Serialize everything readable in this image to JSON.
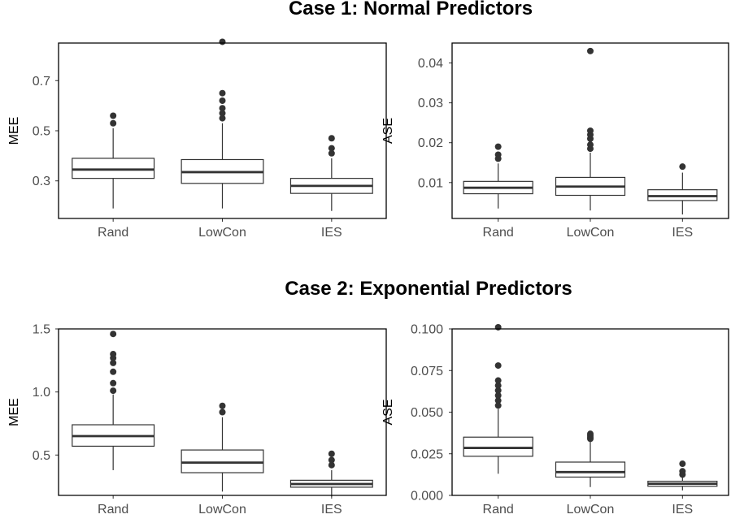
{
  "figure": {
    "case_titles": [
      "Case 1: Normal Predictors",
      "Case 2: Exponential Predictors"
    ]
  },
  "chart_data": [
    {
      "type": "boxplot",
      "panel": "case1-mee",
      "title": "",
      "xlabel": "",
      "ylabel": "MEE",
      "categories": [
        "Rand",
        "LowCon",
        "IES"
      ],
      "ylim": [
        0.15,
        0.85
      ],
      "yticks": [
        0.3,
        0.5,
        0.7
      ],
      "ytick_labels": [
        "0.3",
        "0.5",
        "0.7"
      ],
      "boxes": [
        {
          "category": "Rand",
          "whisker_low": 0.19,
          "q1": 0.31,
          "median": 0.345,
          "q3": 0.39,
          "whisker_high": 0.51,
          "outliers": [
            0.53,
            0.56
          ]
        },
        {
          "category": "LowCon",
          "whisker_low": 0.19,
          "q1": 0.29,
          "median": 0.335,
          "q3": 0.385,
          "whisker_high": 0.53,
          "outliers": [
            0.55,
            0.57,
            0.59,
            0.62,
            0.65,
            0.855
          ]
        },
        {
          "category": "IES",
          "whisker_low": 0.18,
          "q1": 0.25,
          "median": 0.28,
          "q3": 0.31,
          "whisker_high": 0.39,
          "outliers": [
            0.41,
            0.43,
            0.47
          ]
        }
      ]
    },
    {
      "type": "boxplot",
      "panel": "case1-ase",
      "title": "",
      "xlabel": "",
      "ylabel": "ASE",
      "categories": [
        "Rand",
        "LowCon",
        "IES"
      ],
      "ylim": [
        0.001,
        0.045
      ],
      "yticks": [
        0.01,
        0.02,
        0.03,
        0.04
      ],
      "ytick_labels": [
        "0.01",
        "0.02",
        "0.03",
        "0.04"
      ],
      "boxes": [
        {
          "category": "Rand",
          "whisker_low": 0.0035,
          "q1": 0.0072,
          "median": 0.0087,
          "q3": 0.0103,
          "whisker_high": 0.0148,
          "outliers": [
            0.016,
            0.017,
            0.019
          ]
        },
        {
          "category": "LowCon",
          "whisker_low": 0.003,
          "q1": 0.0068,
          "median": 0.009,
          "q3": 0.0113,
          "whisker_high": 0.0175,
          "outliers": [
            0.0185,
            0.0195,
            0.021,
            0.022,
            0.023,
            0.043
          ]
        },
        {
          "category": "IES",
          "whisker_low": 0.002,
          "q1": 0.0055,
          "median": 0.0066,
          "q3": 0.0082,
          "whisker_high": 0.0125,
          "outliers": [
            0.014
          ]
        }
      ]
    },
    {
      "type": "boxplot",
      "panel": "case2-mee",
      "title": "",
      "xlabel": "",
      "ylabel": "MEE",
      "categories": [
        "Rand",
        "LowCon",
        "IES"
      ],
      "ylim": [
        0.18,
        1.5
      ],
      "yticks": [
        0.5,
        1.0,
        1.5
      ],
      "ytick_labels": [
        "0.5",
        "1.0",
        "1.5"
      ],
      "boxes": [
        {
          "category": "Rand",
          "whisker_low": 0.38,
          "q1": 0.57,
          "median": 0.65,
          "q3": 0.74,
          "whisker_high": 0.98,
          "outliers": [
            1.01,
            1.07,
            1.16,
            1.23,
            1.27,
            1.3,
            1.46
          ]
        },
        {
          "category": "LowCon",
          "whisker_low": 0.21,
          "q1": 0.36,
          "median": 0.44,
          "q3": 0.54,
          "whisker_high": 0.8,
          "outliers": [
            0.84,
            0.89
          ]
        },
        {
          "category": "IES",
          "whisker_low": 0.17,
          "q1": 0.245,
          "median": 0.27,
          "q3": 0.3,
          "whisker_high": 0.38,
          "outliers": [
            0.42,
            0.46,
            0.51
          ]
        }
      ]
    },
    {
      "type": "boxplot",
      "panel": "case2-ase",
      "title": "",
      "xlabel": "",
      "ylabel": "ASE",
      "categories": [
        "Rand",
        "LowCon",
        "IES"
      ],
      "ylim": [
        0,
        0.1
      ],
      "yticks": [
        0,
        0.025,
        0.05,
        0.075,
        0.1
      ],
      "ytick_labels": [
        "0.000",
        "0.025",
        "0.050",
        "0.075",
        "0.100"
      ],
      "boxes": [
        {
          "category": "Rand",
          "whisker_low": 0.013,
          "q1": 0.0235,
          "median": 0.0285,
          "q3": 0.035,
          "whisker_high": 0.052,
          "outliers": [
            0.054,
            0.057,
            0.06,
            0.063,
            0.066,
            0.069,
            0.078,
            0.101
          ]
        },
        {
          "category": "LowCon",
          "whisker_low": 0.005,
          "q1": 0.011,
          "median": 0.014,
          "q3": 0.02,
          "whisker_high": 0.033,
          "outliers": [
            0.034,
            0.035,
            0.036,
            0.037
          ]
        },
        {
          "category": "IES",
          "whisker_low": 0.003,
          "q1": 0.0055,
          "median": 0.007,
          "q3": 0.0085,
          "whisker_high": 0.0115,
          "outliers": [
            0.0125,
            0.0145,
            0.019
          ]
        }
      ]
    }
  ]
}
